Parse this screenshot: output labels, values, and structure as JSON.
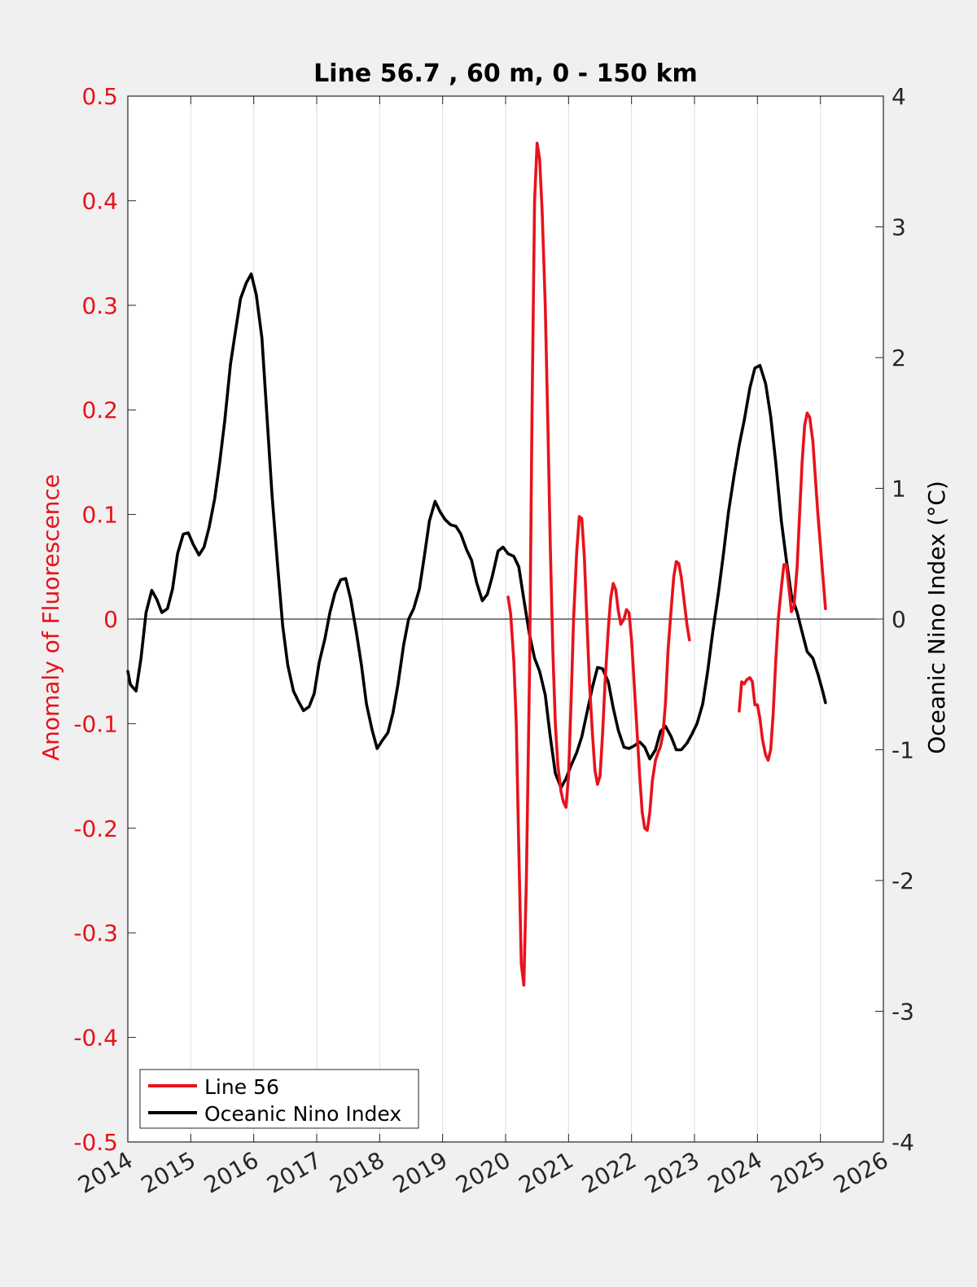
{
  "chart_data": {
    "type": "line",
    "title": "Line 56.7 , 60 m, 0 - 150 km",
    "ylabel_left": "Anomaly of Fluorescence",
    "ylabel_right": "Oceanic Nino Index (°C)",
    "xlim": [
      2014,
      2026
    ],
    "ylim_left": [
      -0.5,
      0.5
    ],
    "ylim_right": [
      -4,
      4
    ],
    "x_ticks": [
      "2014",
      "2015",
      "2016",
      "2017",
      "2018",
      "2019",
      "2020",
      "2021",
      "2022",
      "2023",
      "2024",
      "2025",
      "2026"
    ],
    "y_left_ticks": [
      "0.5",
      "0.4",
      "0.3",
      "0.2",
      "0.1",
      "0",
      "-0.1",
      "-0.2",
      "-0.3",
      "-0.4",
      "-0.5"
    ],
    "y_right_ticks": [
      "4",
      "3",
      "2",
      "1",
      "0",
      "-1",
      "-2",
      "-3",
      "-4"
    ],
    "grid": "vertical",
    "legend_position": "bottom-left",
    "colors": {
      "left_axis": "#e8121b",
      "fluorescence": "#e8121b",
      "oni": "#000000",
      "background": "#f0f0f0",
      "plot_bg": "#ffffff",
      "grid": "#dedede"
    },
    "series": [
      {
        "name": "Line 56",
        "axis": "left",
        "segments": [
          [
            [
              2020.04,
              0.021
            ],
            [
              2020.08,
              0.005
            ],
            [
              2020.13,
              -0.04
            ],
            [
              2020.17,
              -0.1
            ],
            [
              2020.21,
              -0.22
            ],
            [
              2020.25,
              -0.33
            ],
            [
              2020.29,
              -0.35
            ],
            [
              2020.33,
              -0.25
            ],
            [
              2020.38,
              -0.05
            ],
            [
              2020.42,
              0.2
            ],
            [
              2020.46,
              0.4
            ],
            [
              2020.5,
              0.455
            ],
            [
              2020.54,
              0.44
            ],
            [
              2020.58,
              0.39
            ],
            [
              2020.63,
              0.3
            ],
            [
              2020.67,
              0.19
            ],
            [
              2020.71,
              0.07
            ],
            [
              2020.75,
              -0.03
            ],
            [
              2020.79,
              -0.1
            ],
            [
              2020.83,
              -0.14
            ],
            [
              2020.88,
              -0.165
            ],
            [
              2020.92,
              -0.175
            ],
            [
              2020.96,
              -0.18
            ],
            [
              2021.0,
              -0.15
            ],
            [
              2021.04,
              -0.08
            ],
            [
              2021.08,
              0.0
            ],
            [
              2021.13,
              0.065
            ],
            [
              2021.17,
              0.098
            ],
            [
              2021.21,
              0.096
            ],
            [
              2021.25,
              0.06
            ],
            [
              2021.29,
              0.0
            ],
            [
              2021.33,
              -0.06
            ],
            [
              2021.38,
              -0.11
            ],
            [
              2021.42,
              -0.145
            ],
            [
              2021.46,
              -0.158
            ],
            [
              2021.5,
              -0.15
            ],
            [
              2021.54,
              -0.11
            ],
            [
              2021.58,
              -0.06
            ],
            [
              2021.63,
              -0.01
            ],
            [
              2021.67,
              0.02
            ],
            [
              2021.71,
              0.034
            ],
            [
              2021.75,
              0.028
            ],
            [
              2021.79,
              0.008
            ],
            [
              2021.83,
              -0.005
            ],
            [
              2021.88,
              0.0
            ],
            [
              2021.92,
              0.009
            ],
            [
              2021.96,
              0.006
            ],
            [
              2022.0,
              -0.02
            ],
            [
              2022.04,
              -0.06
            ],
            [
              2022.08,
              -0.1
            ],
            [
              2022.13,
              -0.15
            ],
            [
              2022.17,
              -0.185
            ],
            [
              2022.21,
              -0.2
            ],
            [
              2022.25,
              -0.202
            ],
            [
              2022.29,
              -0.185
            ],
            [
              2022.33,
              -0.155
            ],
            [
              2022.38,
              -0.135
            ],
            [
              2022.42,
              -0.128
            ],
            [
              2022.46,
              -0.122
            ],
            [
              2022.5,
              -0.11
            ],
            [
              2022.54,
              -0.08
            ],
            [
              2022.58,
              -0.03
            ],
            [
              2022.63,
              0.01
            ],
            [
              2022.67,
              0.04
            ],
            [
              2022.71,
              0.055
            ],
            [
              2022.75,
              0.053
            ],
            [
              2022.79,
              0.04
            ],
            [
              2022.83,
              0.02
            ],
            [
              2022.88,
              -0.005
            ],
            [
              2022.92,
              -0.02
            ]
          ],
          [
            [
              2023.71,
              -0.088
            ],
            [
              2023.75,
              -0.06
            ],
            [
              2023.79,
              -0.062
            ],
            [
              2023.83,
              -0.058
            ],
            [
              2023.88,
              -0.056
            ],
            [
              2023.92,
              -0.06
            ],
            [
              2023.96,
              -0.082
            ],
            [
              2024.0,
              -0.082
            ],
            [
              2024.04,
              -0.095
            ],
            [
              2024.08,
              -0.115
            ],
            [
              2024.13,
              -0.13
            ],
            [
              2024.17,
              -0.135
            ],
            [
              2024.21,
              -0.125
            ],
            [
              2024.25,
              -0.09
            ],
            [
              2024.29,
              -0.04
            ],
            [
              2024.33,
              0.0
            ],
            [
              2024.38,
              0.03
            ],
            [
              2024.42,
              0.052
            ],
            [
              2024.46,
              0.052
            ],
            [
              2024.5,
              0.03
            ],
            [
              2024.54,
              0.007
            ],
            [
              2024.58,
              0.012
            ],
            [
              2024.63,
              0.05
            ],
            [
              2024.67,
              0.1
            ],
            [
              2024.71,
              0.15
            ],
            [
              2024.75,
              0.185
            ],
            [
              2024.79,
              0.197
            ],
            [
              2024.83,
              0.193
            ],
            [
              2024.88,
              0.17
            ],
            [
              2024.92,
              0.135
            ],
            [
              2024.96,
              0.1
            ],
            [
              2025.0,
              0.07
            ],
            [
              2025.04,
              0.04
            ],
            [
              2025.08,
              0.01
            ]
          ]
        ]
      },
      {
        "name": "Oceanic Nino Index",
        "axis": "right",
        "points": [
          [
            2014.0,
            -0.4
          ],
          [
            2014.04,
            -0.5
          ],
          [
            2014.13,
            -0.55
          ],
          [
            2014.21,
            -0.3
          ],
          [
            2014.29,
            0.05
          ],
          [
            2014.38,
            0.22
          ],
          [
            2014.46,
            0.15
          ],
          [
            2014.54,
            0.05
          ],
          [
            2014.63,
            0.08
          ],
          [
            2014.71,
            0.23
          ],
          [
            2014.79,
            0.5
          ],
          [
            2014.88,
            0.65
          ],
          [
            2014.96,
            0.66
          ],
          [
            2015.04,
            0.57
          ],
          [
            2015.13,
            0.49
          ],
          [
            2015.21,
            0.55
          ],
          [
            2015.29,
            0.7
          ],
          [
            2015.38,
            0.92
          ],
          [
            2015.46,
            1.2
          ],
          [
            2015.54,
            1.52
          ],
          [
            2015.63,
            1.95
          ],
          [
            2015.71,
            2.2
          ],
          [
            2015.79,
            2.45
          ],
          [
            2015.88,
            2.57
          ],
          [
            2015.96,
            2.64
          ],
          [
            2016.04,
            2.48
          ],
          [
            2016.13,
            2.15
          ],
          [
            2016.21,
            1.55
          ],
          [
            2016.29,
            0.95
          ],
          [
            2016.38,
            0.4
          ],
          [
            2016.46,
            -0.05
          ],
          [
            2016.54,
            -0.35
          ],
          [
            2016.63,
            -0.55
          ],
          [
            2016.71,
            -0.63
          ],
          [
            2016.79,
            -0.7
          ],
          [
            2016.88,
            -0.67
          ],
          [
            2016.96,
            -0.57
          ],
          [
            2017.04,
            -0.33
          ],
          [
            2017.13,
            -0.15
          ],
          [
            2017.21,
            0.05
          ],
          [
            2017.29,
            0.2
          ],
          [
            2017.38,
            0.3
          ],
          [
            2017.46,
            0.31
          ],
          [
            2017.54,
            0.15
          ],
          [
            2017.63,
            -0.1
          ],
          [
            2017.71,
            -0.35
          ],
          [
            2017.79,
            -0.65
          ],
          [
            2017.88,
            -0.85
          ],
          [
            2017.96,
            -0.99
          ],
          [
            2018.04,
            -0.93
          ],
          [
            2018.13,
            -0.87
          ],
          [
            2018.21,
            -0.72
          ],
          [
            2018.29,
            -0.5
          ],
          [
            2018.38,
            -0.2
          ],
          [
            2018.46,
            0.0
          ],
          [
            2018.54,
            0.08
          ],
          [
            2018.63,
            0.23
          ],
          [
            2018.71,
            0.48
          ],
          [
            2018.79,
            0.75
          ],
          [
            2018.88,
            0.9
          ],
          [
            2018.96,
            0.82
          ],
          [
            2019.04,
            0.76
          ],
          [
            2019.13,
            0.72
          ],
          [
            2019.21,
            0.71
          ],
          [
            2019.29,
            0.65
          ],
          [
            2019.38,
            0.53
          ],
          [
            2019.46,
            0.45
          ],
          [
            2019.54,
            0.28
          ],
          [
            2019.63,
            0.14
          ],
          [
            2019.71,
            0.19
          ],
          [
            2019.79,
            0.33
          ],
          [
            2019.88,
            0.52
          ],
          [
            2019.96,
            0.55
          ],
          [
            2020.04,
            0.5
          ],
          [
            2020.13,
            0.48
          ],
          [
            2020.21,
            0.4
          ],
          [
            2020.29,
            0.15
          ],
          [
            2020.38,
            -0.12
          ],
          [
            2020.46,
            -0.3
          ],
          [
            2020.54,
            -0.4
          ],
          [
            2020.63,
            -0.58
          ],
          [
            2020.71,
            -0.9
          ],
          [
            2020.79,
            -1.18
          ],
          [
            2020.88,
            -1.29
          ],
          [
            2020.96,
            -1.22
          ],
          [
            2021.04,
            -1.12
          ],
          [
            2021.13,
            -1.02
          ],
          [
            2021.21,
            -0.9
          ],
          [
            2021.29,
            -0.72
          ],
          [
            2021.38,
            -0.52
          ],
          [
            2021.46,
            -0.37
          ],
          [
            2021.54,
            -0.38
          ],
          [
            2021.63,
            -0.48
          ],
          [
            2021.71,
            -0.68
          ],
          [
            2021.79,
            -0.85
          ],
          [
            2021.88,
            -0.98
          ],
          [
            2021.96,
            -0.99
          ],
          [
            2022.04,
            -0.97
          ],
          [
            2022.13,
            -0.94
          ],
          [
            2022.21,
            -0.98
          ],
          [
            2022.29,
            -1.07
          ],
          [
            2022.38,
            -1.0
          ],
          [
            2022.46,
            -0.86
          ],
          [
            2022.54,
            -0.82
          ],
          [
            2022.63,
            -0.9
          ],
          [
            2022.71,
            -1.0
          ],
          [
            2022.79,
            -1.0
          ],
          [
            2022.88,
            -0.95
          ],
          [
            2022.96,
            -0.88
          ],
          [
            2023.04,
            -0.8
          ],
          [
            2023.13,
            -0.65
          ],
          [
            2023.21,
            -0.4
          ],
          [
            2023.29,
            -0.1
          ],
          [
            2023.38,
            0.2
          ],
          [
            2023.46,
            0.5
          ],
          [
            2023.54,
            0.82
          ],
          [
            2023.63,
            1.1
          ],
          [
            2023.71,
            1.33
          ],
          [
            2023.79,
            1.52
          ],
          [
            2023.88,
            1.77
          ],
          [
            2023.96,
            1.92
          ],
          [
            2024.04,
            1.94
          ],
          [
            2024.13,
            1.8
          ],
          [
            2024.21,
            1.55
          ],
          [
            2024.29,
            1.2
          ],
          [
            2024.38,
            0.75
          ],
          [
            2024.46,
            0.45
          ],
          [
            2024.54,
            0.18
          ],
          [
            2024.63,
            0.05
          ],
          [
            2024.71,
            -0.1
          ],
          [
            2024.79,
            -0.25
          ],
          [
            2024.88,
            -0.3
          ],
          [
            2024.96,
            -0.42
          ],
          [
            2025.04,
            -0.56
          ],
          [
            2025.08,
            -0.64
          ]
        ]
      }
    ]
  }
}
